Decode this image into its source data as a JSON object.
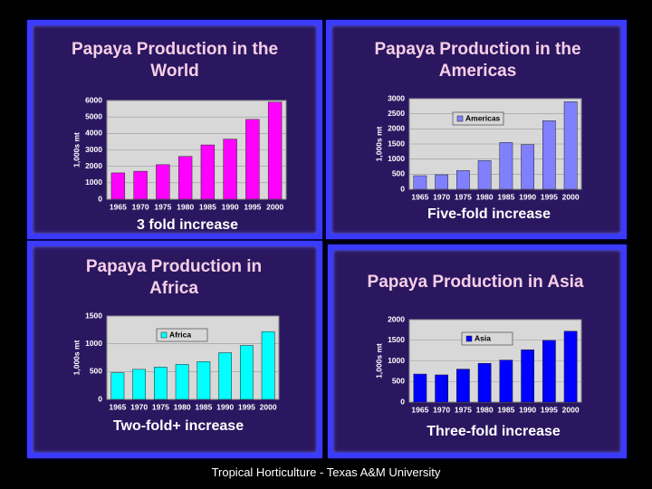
{
  "chart_data": [
    {
      "type": "bar",
      "title": "Papaya Production in the World",
      "annotation": "3 fold increase",
      "y_label": "1,000s mt",
      "categories": [
        "1965",
        "1970",
        "1975",
        "1980",
        "1985",
        "1990",
        "1995",
        "2000"
      ],
      "values": [
        1600,
        1700,
        2100,
        2600,
        3300,
        3650,
        4850,
        5900
      ],
      "color": "#ff00ff",
      "ylim": [
        0,
        6000
      ],
      "yticks": [
        0,
        1000,
        2000,
        3000,
        4000,
        5000,
        6000
      ],
      "grid": true
    },
    {
      "type": "bar",
      "title": "Papaya Production in the Americas",
      "annotation": "Five-fold increase",
      "y_label": "1,000s mt",
      "categories": [
        "1965",
        "1970",
        "1975",
        "1980",
        "1985",
        "1990",
        "1995",
        "2000"
      ],
      "series": [
        {
          "name": "Americas",
          "color": "#8080ff",
          "values": [
            450,
            480,
            620,
            950,
            1550,
            1480,
            2270,
            2900
          ]
        }
      ],
      "ylim": [
        0,
        3000
      ],
      "yticks": [
        0,
        500,
        1000,
        1500,
        2000,
        2500,
        3000
      ],
      "grid": true
    },
    {
      "type": "bar",
      "title": "Papaya Production in Africa",
      "annotation": "Two-fold+ increase",
      "y_label": "1,000s mt",
      "categories": [
        "1965",
        "1970",
        "1975",
        "1980",
        "1985",
        "1990",
        "1995",
        "2000"
      ],
      "series": [
        {
          "name": "Africa",
          "color": "#00ffff",
          "values": [
            480,
            540,
            580,
            630,
            680,
            840,
            970,
            1220
          ]
        }
      ],
      "ylim": [
        0,
        1500
      ],
      "yticks": [
        0,
        500,
        1000,
        1500
      ],
      "grid": true
    },
    {
      "type": "bar",
      "title": "Papaya Production in Asia",
      "annotation": "Three-fold increase",
      "y_label": "1,000s mt",
      "categories": [
        "1965",
        "1970",
        "1975",
        "1980",
        "1985",
        "1990",
        "1995",
        "2000"
      ],
      "series": [
        {
          "name": "Asia",
          "color": "#0000ff",
          "values": [
            680,
            660,
            800,
            940,
            1020,
            1270,
            1500,
            1720
          ]
        }
      ],
      "ylim": [
        0,
        2000
      ],
      "yticks": [
        0,
        500,
        1000,
        1500,
        2000
      ],
      "grid": true
    }
  ],
  "footer": "Tropical Horticulture - Texas A&M University"
}
